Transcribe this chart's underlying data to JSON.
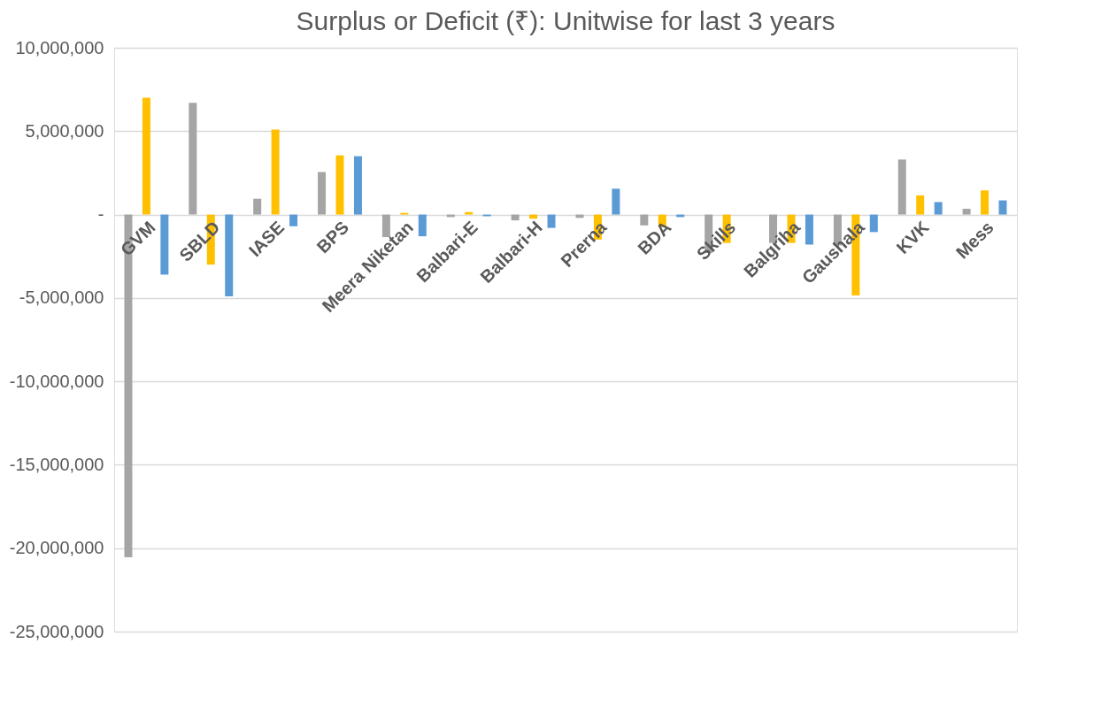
{
  "chart_data": {
    "type": "bar",
    "title": "Surplus or Deficit (₹): Unitwise for last 3 years",
    "categories": [
      "GVM",
      "SBLD",
      "IASE",
      "BPS",
      "Meera Niketan",
      "Balbari-E",
      "Balbari-H",
      "Prerna",
      "BDA",
      "Skills",
      "Balgriha",
      "Gaushala",
      "KVK",
      "Mess"
    ],
    "series": [
      {
        "color": "#a5a5a5",
        "values": [
          -20550000,
          6700000,
          950000,
          2550000,
          -1350000,
          -150000,
          -350000,
          -200000,
          -650000,
          -2300000,
          -1700000,
          -1850000,
          3300000,
          350000
        ]
      },
      {
        "color": "#ffc000",
        "values": [
          7000000,
          -3000000,
          5100000,
          3550000,
          100000,
          150000,
          -250000,
          -1500000,
          -750000,
          -1700000,
          -1700000,
          -4850000,
          1150000,
          1450000
        ]
      },
      {
        "color": "#5b9bd5",
        "values": [
          -3600000,
          -4900000,
          -700000,
          3500000,
          -1300000,
          -100000,
          -800000,
          1550000,
          -150000,
          null,
          -1800000,
          -1050000,
          750000,
          850000
        ]
      }
    ],
    "ylim": [
      -25000000,
      10000000
    ],
    "yticks": [
      {
        "value": -25000000,
        "label": "-25,000,000"
      },
      {
        "value": -20000000,
        "label": "-20,000,000"
      },
      {
        "value": -15000000,
        "label": "-15,000,000"
      },
      {
        "value": -10000000,
        "label": "-10,000,000"
      },
      {
        "value": -5000000,
        "label": "-5,000,000"
      },
      {
        "value": 0,
        "label": "-"
      },
      {
        "value": 5000000,
        "label": "5,000,000"
      },
      {
        "value": 10000000,
        "label": "10,000,000"
      }
    ],
    "grid": "y",
    "legend": false
  }
}
